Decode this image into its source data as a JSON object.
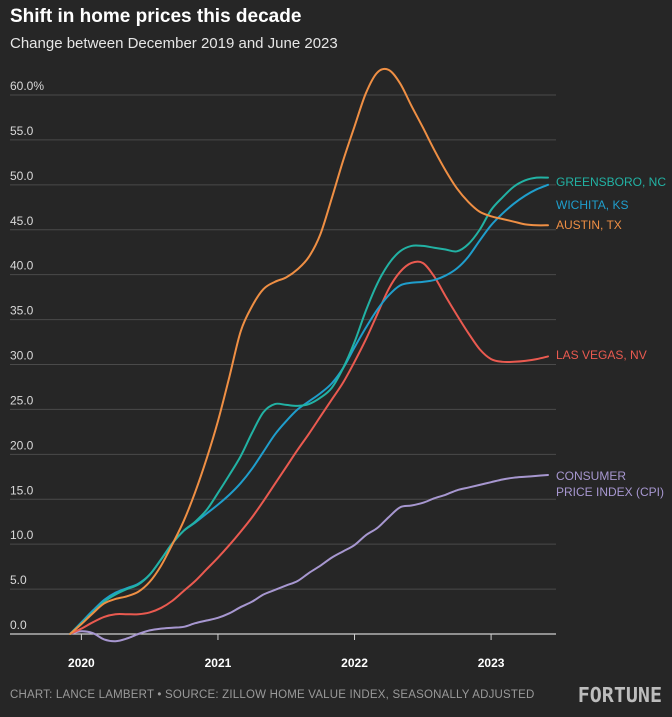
{
  "title": "Shift in home prices this decade",
  "subtitle": "Change between December 2019 and June 2023",
  "footer": {
    "credit": "CHART: LANCE LAMBERT • SOURCE: ZILLOW HOME VALUE INDEX, SEASONALLY ADJUSTED",
    "brand": "FORTUNE"
  },
  "chart_data": {
    "type": "line",
    "title": "Shift in home prices this decade",
    "subtitle": "Change between December 2019 and June 2023",
    "xlabel": "",
    "ylabel": "",
    "xlim": [
      "2019-12",
      "2023-06"
    ],
    "ylim": [
      0,
      60
    ],
    "grid": true,
    "y_ticks": [
      "0.0",
      "5.0",
      "10.0",
      "15.0",
      "20.0",
      "25.0",
      "30.0",
      "35.0",
      "40.0",
      "45.0",
      "50.0",
      "55.0",
      "60.0%"
    ],
    "x_ticks": [
      "2020",
      "2021",
      "2022",
      "2023"
    ],
    "x": [
      "2019-12",
      "2020-01",
      "2020-02",
      "2020-03",
      "2020-04",
      "2020-05",
      "2020-06",
      "2020-07",
      "2020-08",
      "2020-09",
      "2020-10",
      "2020-11",
      "2020-12",
      "2021-01",
      "2021-02",
      "2021-03",
      "2021-04",
      "2021-05",
      "2021-06",
      "2021-07",
      "2021-08",
      "2021-09",
      "2021-10",
      "2021-11",
      "2021-12",
      "2022-01",
      "2022-02",
      "2022-03",
      "2022-04",
      "2022-05",
      "2022-06",
      "2022-07",
      "2022-08",
      "2022-09",
      "2022-10",
      "2022-11",
      "2022-12",
      "2023-01",
      "2023-02",
      "2023-03",
      "2023-04",
      "2023-05",
      "2023-06"
    ],
    "series": [
      {
        "name": "GREENSBORO, NC",
        "color": "#22b2a4",
        "values": [
          0.0,
          1.2,
          2.4,
          3.6,
          4.4,
          5.0,
          5.5,
          6.6,
          8.3,
          10.1,
          11.5,
          12.5,
          13.8,
          15.7,
          17.7,
          19.8,
          22.4,
          24.7,
          25.6,
          25.5,
          25.4,
          25.6,
          26.3,
          27.4,
          29.6,
          32.5,
          36.0,
          39.0,
          41.2,
          42.6,
          43.2,
          43.2,
          43.0,
          42.8,
          42.6,
          43.4,
          45.0,
          47.2,
          48.6,
          49.8,
          50.5,
          50.8,
          50.8
        ]
      },
      {
        "name": "WICHITA, KS",
        "color": "#1f9ecc",
        "values": [
          0.0,
          1.3,
          2.6,
          3.8,
          4.6,
          5.1,
          5.6,
          6.6,
          8.3,
          10.1,
          11.5,
          12.4,
          13.4,
          14.4,
          15.5,
          16.8,
          18.4,
          20.3,
          22.2,
          23.7,
          25.0,
          25.9,
          26.8,
          27.9,
          29.6,
          31.9,
          34.1,
          36.1,
          37.7,
          38.8,
          39.1,
          39.2,
          39.4,
          39.9,
          40.7,
          42.0,
          43.8,
          45.5,
          46.8,
          47.9,
          48.8,
          49.5,
          50.0
        ]
      },
      {
        "name": "AUSTIN, TX",
        "color": "#ef8f44",
        "values": [
          0.0,
          1.1,
          2.3,
          3.4,
          3.9,
          4.2,
          4.7,
          5.8,
          7.6,
          10.0,
          12.6,
          15.8,
          19.5,
          23.7,
          28.6,
          33.7,
          36.5,
          38.4,
          39.2,
          39.7,
          40.6,
          42.0,
          44.5,
          48.5,
          52.7,
          56.5,
          60.2,
          62.5,
          62.8,
          61.3,
          58.8,
          56.4,
          53.9,
          51.6,
          49.6,
          48.1,
          47.0,
          46.5,
          46.2,
          45.9,
          45.6,
          45.5,
          45.5
        ]
      },
      {
        "name": "LAS VEGAS, NV",
        "color": "#ea5a50",
        "values": [
          0.0,
          0.6,
          1.3,
          1.9,
          2.2,
          2.2,
          2.2,
          2.4,
          2.9,
          3.7,
          4.8,
          5.9,
          7.2,
          8.5,
          9.9,
          11.4,
          13.0,
          14.8,
          16.7,
          18.6,
          20.5,
          22.3,
          24.2,
          26.1,
          28.0,
          30.3,
          32.8,
          35.6,
          38.4,
          40.3,
          41.3,
          41.3,
          39.8,
          37.6,
          35.5,
          33.5,
          31.7,
          30.6,
          30.3,
          30.3,
          30.4,
          30.6,
          30.9
        ]
      },
      {
        "name": "CONSUMER PRICE INDEX (CPI)",
        "color": "#a797d0",
        "values": [
          0.0,
          0.3,
          0.1,
          -0.6,
          -0.8,
          -0.5,
          0.0,
          0.4,
          0.6,
          0.7,
          0.8,
          1.2,
          1.5,
          1.8,
          2.3,
          3.0,
          3.6,
          4.4,
          4.9,
          5.4,
          5.9,
          6.8,
          7.6,
          8.5,
          9.2,
          9.9,
          11.0,
          11.8,
          13.0,
          14.1,
          14.3,
          14.6,
          15.1,
          15.5,
          16.0,
          16.3,
          16.6,
          16.9,
          17.2,
          17.4,
          17.5,
          17.6,
          17.7
        ]
      }
    ],
    "labels": [
      {
        "lines": [
          "GREENSBORO, NC"
        ],
        "color": "#22b2a4"
      },
      {
        "lines": [
          "WICHITA, KS"
        ],
        "color": "#1f9ecc"
      },
      {
        "lines": [
          "AUSTIN, TX"
        ],
        "color": "#ef8f44"
      },
      {
        "lines": [
          "LAS VEGAS, NV"
        ],
        "color": "#ea5a50"
      },
      {
        "lines": [
          "CONSUMER",
          "PRICE INDEX (CPI)"
        ],
        "color": "#a797d0"
      }
    ]
  }
}
